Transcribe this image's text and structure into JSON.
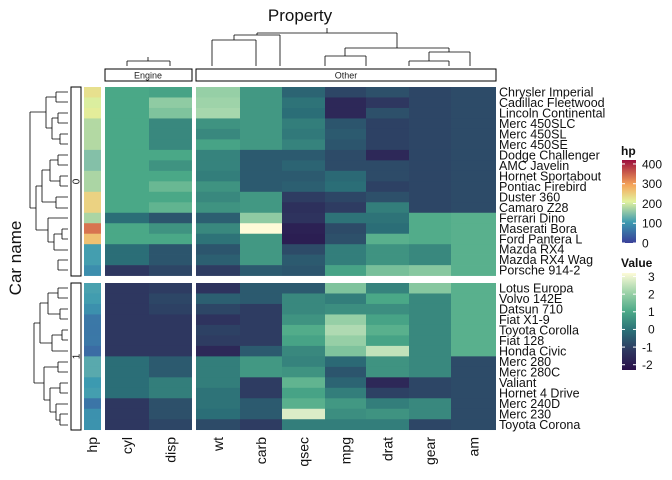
{
  "chart_data": {
    "type": "heatmap",
    "title": "Property",
    "ylabel": "Car name",
    "column_groups": [
      {
        "name": "Engine",
        "columns": [
          "cyl",
          "disp"
        ]
      },
      {
        "name": "Other",
        "columns": [
          "wt",
          "carb",
          "qsec",
          "mpg",
          "drat",
          "gear",
          "am"
        ]
      }
    ],
    "annotation_column": "hp",
    "columns": [
      "cyl",
      "disp",
      "wt",
      "carb",
      "qsec",
      "mpg",
      "drat",
      "gear",
      "am"
    ],
    "row_splits": [
      {
        "label": "0",
        "rows": [
          "Chrysler Imperial",
          "Cadillac Fleetwood",
          "Lincoln Continental",
          "Merc 450SLC",
          "Merc 450SL",
          "Merc 450SE",
          "Dodge Challenger",
          "AMC Javelin",
          "Hornet Sportabout",
          "Pontiac Firebird",
          "Duster 360",
          "Camaro Z28",
          "Ferrari Dino",
          "Maserati Bora",
          "Ford Pantera L",
          "Mazda RX4",
          "Mazda RX4 Wag",
          "Porsche 914-2"
        ]
      },
      {
        "label": "1",
        "rows": [
          "Lotus Europa",
          "Volvo 142E",
          "Datsun 710",
          "Fiat X1-9",
          "Toyota Corolla",
          "Fiat 128",
          "Honda Civic",
          "Merc 280",
          "Merc 280C",
          "Valiant",
          "Hornet 4 Drive",
          "Merc 240D",
          "Merc 230",
          "Toyota Corona"
        ]
      }
    ],
    "hp": [
      230,
      205,
      215,
      180,
      180,
      180,
      150,
      150,
      175,
      175,
      245,
      245,
      175,
      335,
      264,
      110,
      110,
      91,
      113,
      109,
      93,
      66,
      65,
      66,
      52,
      123,
      123,
      105,
      110,
      62,
      95,
      97
    ],
    "values": [
      [
        1.0,
        0.9,
        2.0,
        0.7,
        -0.3,
        -0.9,
        -0.7,
        -0.9,
        -0.8
      ],
      [
        1.0,
        1.9,
        2.1,
        0.7,
        -0.0,
        -1.6,
        -1.2,
        -0.9,
        -0.8
      ],
      [
        1.0,
        1.7,
        2.2,
        0.7,
        -0.1,
        -1.6,
        -0.7,
        -0.9,
        -0.8
      ],
      [
        1.0,
        0.4,
        0.6,
        0.7,
        0.2,
        -0.6,
        -1.0,
        -0.9,
        -0.8
      ],
      [
        1.0,
        0.4,
        0.4,
        0.7,
        0.1,
        -0.5,
        -1.0,
        -0.9,
        -0.8
      ],
      [
        1.0,
        0.4,
        0.9,
        0.7,
        0.3,
        -0.6,
        -1.0,
        -0.9,
        -0.8
      ],
      [
        1.0,
        1.0,
        0.3,
        -0.5,
        -0.5,
        -0.8,
        -1.6,
        -0.9,
        -0.8
      ],
      [
        1.0,
        0.6,
        0.3,
        -0.5,
        -0.3,
        -0.8,
        -0.8,
        -0.9,
        -0.8
      ],
      [
        1.0,
        1.0,
        0.2,
        -0.5,
        -0.5,
        -0.2,
        -0.8,
        -0.9,
        -0.8
      ],
      [
        1.0,
        1.4,
        0.6,
        -0.5,
        -0.4,
        -0.1,
        -1.0,
        -0.9,
        -0.8
      ],
      [
        1.0,
        1.0,
        0.4,
        0.7,
        -1.1,
        -0.9,
        -0.7,
        -0.9,
        -0.8
      ],
      [
        1.0,
        1.3,
        0.6,
        0.7,
        -1.4,
        -1.1,
        0.2,
        -0.9,
        -0.8
      ],
      [
        -0.1,
        -0.6,
        -0.4,
        1.9,
        -1.3,
        -0.0,
        0.0,
        1.1,
        1.2
      ],
      [
        1.0,
        0.6,
        0.4,
        3.2,
        -1.8,
        -0.8,
        -0.1,
        1.1,
        1.2
      ],
      [
        1.0,
        1.0,
        -0.0,
        0.7,
        -1.9,
        -0.7,
        1.2,
        1.1,
        1.2
      ],
      [
        -0.1,
        -0.6,
        -0.6,
        0.7,
        -0.8,
        0.2,
        0.6,
        0.4,
        1.2
      ],
      [
        -0.1,
        -0.6,
        -0.4,
        0.7,
        -0.5,
        0.2,
        0.6,
        0.4,
        1.2
      ],
      [
        -1.2,
        -0.9,
        -1.1,
        -0.5,
        -0.6,
        0.9,
        1.6,
        1.8,
        1.2
      ],
      [
        -1.2,
        -1.1,
        -1.3,
        -0.5,
        -0.5,
        1.7,
        0.3,
        1.8,
        1.2
      ],
      [
        -1.2,
        -0.9,
        -0.4,
        -0.5,
        0.4,
        0.2,
        1.0,
        0.4,
        1.2
      ],
      [
        -1.2,
        -1.0,
        -0.9,
        -1.1,
        0.4,
        0.5,
        0.5,
        0.4,
        1.2
      ],
      [
        -1.2,
        -1.2,
        -1.3,
        -1.1,
        0.6,
        2.0,
        0.9,
        0.4,
        1.2
      ],
      [
        -1.2,
        -1.2,
        -1.0,
        -1.1,
        1.1,
        2.3,
        1.2,
        0.4,
        1.2
      ],
      [
        -1.2,
        -1.2,
        -1.1,
        -1.1,
        0.9,
        2.0,
        0.9,
        0.4,
        1.2
      ],
      [
        -1.2,
        -1.2,
        -1.6,
        -0.5,
        0.4,
        1.7,
        2.5,
        0.4,
        1.2
      ],
      [
        -0.1,
        -0.5,
        0.2,
        0.7,
        0.3,
        -0.2,
        0.6,
        0.4,
        -0.8
      ],
      [
        -0.1,
        -0.5,
        0.2,
        0.7,
        0.6,
        -0.6,
        0.6,
        0.4,
        -0.8
      ],
      [
        -0.1,
        0.2,
        0.2,
        -1.1,
        1.3,
        -0.3,
        -1.6,
        -0.9,
        -0.8
      ],
      [
        -0.1,
        0.2,
        -0.0,
        -1.1,
        0.9,
        0.2,
        -1.0,
        -0.9,
        -0.8
      ],
      [
        -1.2,
        -0.7,
        -0.0,
        -0.5,
        1.2,
        0.7,
        0.2,
        0.4,
        -0.8
      ],
      [
        -1.2,
        -0.7,
        -0.1,
        -0.5,
        2.8,
        0.5,
        0.6,
        0.4,
        -0.8
      ],
      [
        -1.2,
        -0.9,
        -0.8,
        -1.1,
        0.2,
        0.2,
        0.2,
        -0.9,
        -0.8
      ]
    ],
    "legends": [
      {
        "title": "hp",
        "ticks": [
          "400",
          "300",
          "200",
          "100",
          "0"
        ],
        "range": [
          0,
          420
        ]
      },
      {
        "title": "Value",
        "ticks": [
          "3",
          "2",
          "1",
          "0",
          "-1",
          "-2"
        ],
        "range": [
          -2.3,
          3.2
        ]
      }
    ]
  }
}
